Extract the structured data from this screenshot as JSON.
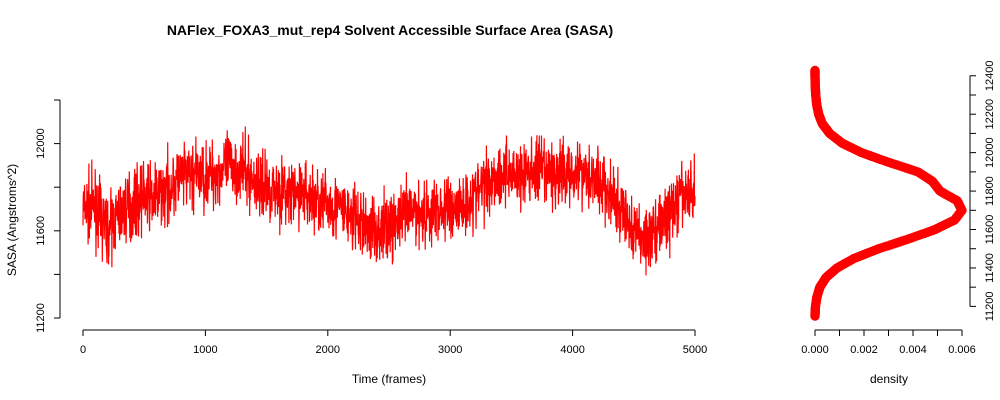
{
  "chart_data": [
    {
      "type": "line",
      "title": "NAFlex_FOXA3_mut_rep4 Solvent Accessible Surface Area (SASA)",
      "xlabel": "Time (frames)",
      "ylabel": "SASA (Angstroms^2)",
      "xlim": [
        0,
        5000
      ],
      "ylim": [
        11200,
        12200
      ],
      "xticks": [
        "0",
        "1000",
        "2000",
        "3000",
        "4000",
        "5000"
      ],
      "yticks": [
        "11200",
        "11600",
        "12000"
      ],
      "line_color": "#ff0000",
      "grid": false,
      "series": [
        {
          "x": [
            0,
            100,
            200,
            300,
            400,
            500,
            600,
            700,
            800,
            900,
            1000,
            1100,
            1200,
            1300,
            1400,
            1500,
            1600,
            1700,
            1800,
            1900,
            2000,
            2100,
            2200,
            2300,
            2400,
            2500,
            2600,
            2700,
            2800,
            2900,
            3000,
            3100,
            3200,
            3300,
            3400,
            3500,
            3600,
            3700,
            3800,
            3900,
            4000,
            4100,
            4200,
            4300,
            4400,
            4500,
            4600,
            4700,
            4800,
            4900,
            5000
          ],
          "values": [
            11700,
            11710,
            11600,
            11680,
            11720,
            11760,
            11750,
            11800,
            11840,
            11860,
            11850,
            11870,
            11900,
            11880,
            11820,
            11800,
            11790,
            11760,
            11780,
            11740,
            11720,
            11700,
            11660,
            11620,
            11600,
            11620,
            11660,
            11690,
            11680,
            11690,
            11700,
            11720,
            11760,
            11830,
            11860,
            11870,
            11850,
            11880,
            11860,
            11850,
            11880,
            11870,
            11840,
            11760,
            11680,
            11600,
            11560,
            11620,
            11680,
            11760,
            11780
          ]
        }
      ]
    },
    {
      "type": "line",
      "title": "",
      "xlabel": "density",
      "ylabel": "",
      "xlim": [
        0,
        0.006
      ],
      "ylim": [
        11150,
        12430
      ],
      "xticks": [
        "0.000",
        "0.002",
        "0.004",
        "0.006"
      ],
      "yticks": [
        "11200",
        "11400",
        "11600",
        "11800",
        "12000",
        "12200",
        "12400"
      ],
      "orientation": "vertical",
      "marker": "filled-circle",
      "line_color": "#ff0000",
      "series": [
        {
          "y": [
            11150,
            11200,
            11250,
            11300,
            11350,
            11400,
            11450,
            11500,
            11550,
            11600,
            11650,
            11700,
            11750,
            11800,
            11850,
            11900,
            11950,
            12000,
            12050,
            12100,
            12150,
            12200,
            12250,
            12300,
            12350,
            12400,
            12430
          ],
          "values": [
            0.0,
            2e-05,
            8e-05,
            0.0002,
            0.00045,
            0.0009,
            0.0016,
            0.0026,
            0.0038,
            0.0049,
            0.0057,
            0.006,
            0.0058,
            0.0051,
            0.0048,
            0.0042,
            0.003,
            0.0019,
            0.0011,
            0.0006,
            0.0003,
            0.00015,
            7e-05,
            3e-05,
            1e-05,
            0.0,
            0.0
          ]
        }
      ]
    }
  ]
}
